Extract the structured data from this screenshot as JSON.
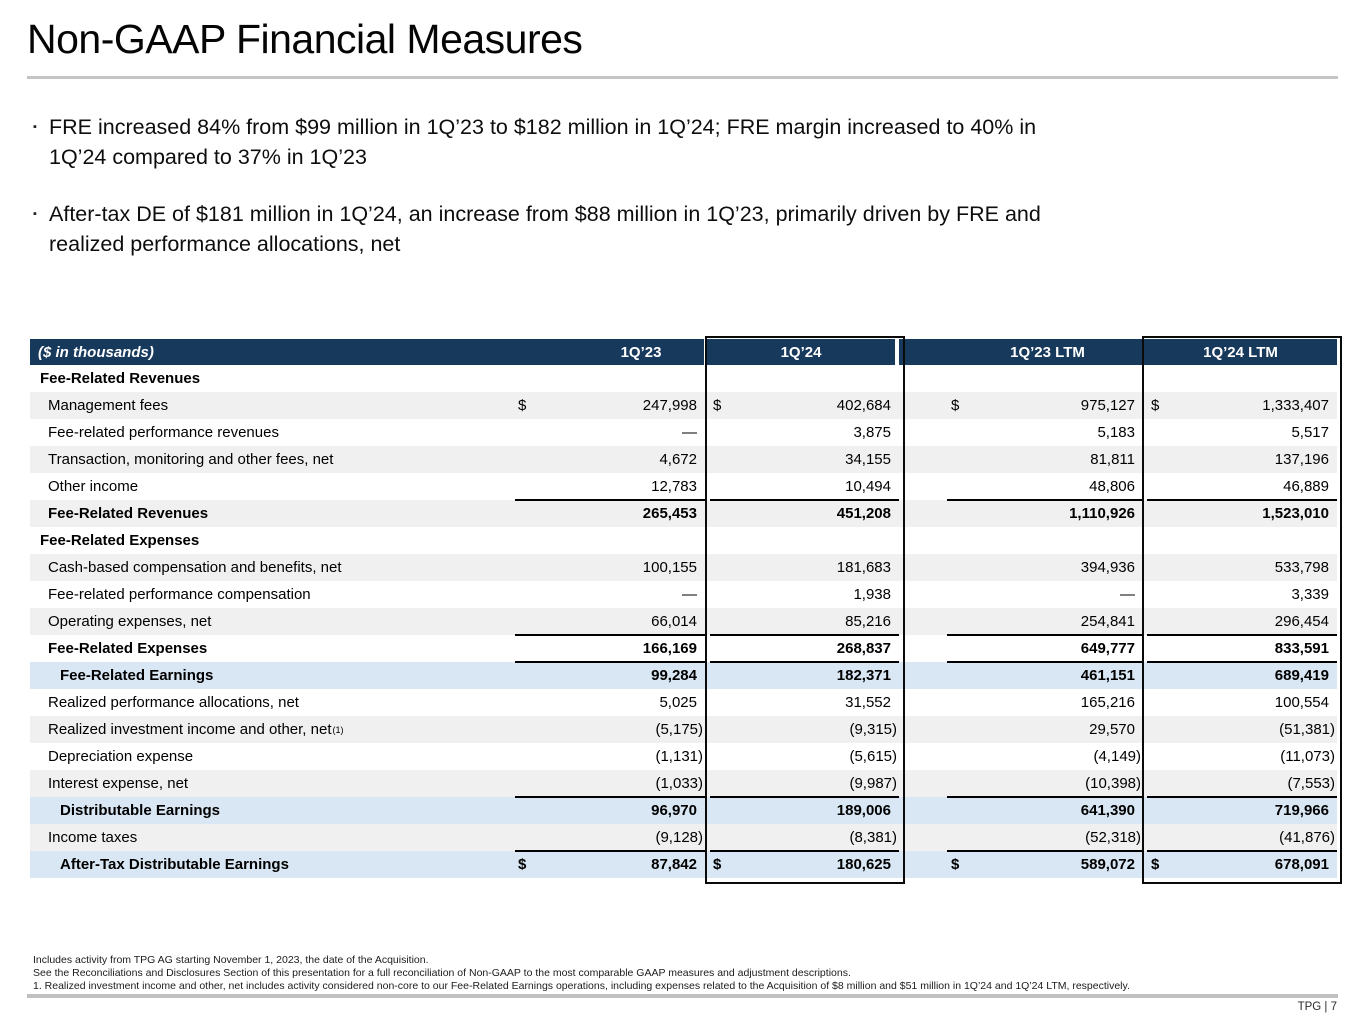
{
  "title": "Non-GAAP Financial Measures",
  "bullet_marker": "▪",
  "bullets": [
    [
      "FRE increased 84% from $99 million in 1Q’23 to $182 million in 1Q’24; FRE margin increased to 40% in",
      "1Q’24 compared to 37% in 1Q’23"
    ],
    [
      "After-tax DE of $181 million in 1Q’24, an increase from $88 million in 1Q’23, primarily driven by FRE and",
      "realized performance allocations, net"
    ]
  ],
  "colors": {
    "header_navy": "#17395c",
    "row_gray": "#f0f0f0",
    "highlight_blue": "#d9e7f4",
    "rule_gray": "#c5c5c5"
  },
  "table": {
    "currency_symbol": "$",
    "columns": [
      "($ in thousands)",
      "1Q’23",
      "1Q’24",
      "1Q’23 LTM",
      "1Q’24 LTM"
    ],
    "rows": [
      {
        "label": "Fee-Related Revenues",
        "type": "section",
        "bg": "white",
        "values": [
          "",
          "",
          "",
          ""
        ]
      },
      {
        "label": "Management fees",
        "type": "item",
        "bg": "gray",
        "dollar": true,
        "values": [
          "247,998",
          "402,684",
          "975,127",
          "1,333,407"
        ]
      },
      {
        "label": "Fee-related performance revenues",
        "type": "item",
        "bg": "white",
        "values": [
          "—",
          "3,875",
          "5,183",
          "5,517"
        ]
      },
      {
        "label": "Transaction, monitoring and other fees, net",
        "type": "item",
        "bg": "gray",
        "values": [
          "4,672",
          "34,155",
          "81,811",
          "137,196"
        ]
      },
      {
        "label": "Other income",
        "type": "item",
        "bg": "white",
        "values": [
          "12,783",
          "10,494",
          "48,806",
          "46,889"
        ]
      },
      {
        "label": "Fee-Related Revenues",
        "type": "total",
        "bg": "gray",
        "topline": true,
        "values": [
          "265,453",
          "451,208",
          "1,110,926",
          "1,523,010"
        ]
      },
      {
        "label": "Fee-Related Expenses",
        "type": "section",
        "bg": "white",
        "values": [
          "",
          "",
          "",
          ""
        ]
      },
      {
        "label": "Cash-based compensation and benefits, net",
        "type": "item",
        "bg": "gray",
        "values": [
          "100,155",
          "181,683",
          "394,936",
          "533,798"
        ]
      },
      {
        "label": "Fee-related performance compensation",
        "type": "item",
        "bg": "white",
        "values": [
          "—",
          "1,938",
          "—",
          "3,339"
        ]
      },
      {
        "label": "Operating expenses, net",
        "type": "item",
        "bg": "gray",
        "values": [
          "66,014",
          "85,216",
          "254,841",
          "296,454"
        ]
      },
      {
        "label": "Fee-Related Expenses",
        "type": "total",
        "bg": "white",
        "topline": true,
        "values": [
          "166,169",
          "268,837",
          "649,777",
          "833,591"
        ]
      },
      {
        "label": "Fee-Related Earnings",
        "type": "highlight",
        "bg": "blue",
        "topline": true,
        "values": [
          "99,284",
          "182,371",
          "461,151",
          "689,419"
        ]
      },
      {
        "label": "Realized performance allocations, net",
        "type": "item",
        "bg": "white",
        "values": [
          "5,025",
          "31,552",
          "165,216",
          "100,554"
        ]
      },
      {
        "label": "Realized investment income and other, net",
        "sup": "(1)",
        "type": "item",
        "bg": "gray",
        "values": [
          "(5,175)",
          "(9,315)",
          "29,570",
          "(51,381)"
        ]
      },
      {
        "label": "Depreciation expense",
        "type": "item",
        "bg": "white",
        "values": [
          "(1,131)",
          "(5,615)",
          "(4,149)",
          "(11,073)"
        ]
      },
      {
        "label": "Interest expense, net",
        "type": "item",
        "bg": "gray",
        "values": [
          "(1,033)",
          "(9,987)",
          "(10,398)",
          "(7,553)"
        ]
      },
      {
        "label": "Distributable Earnings",
        "type": "highlight",
        "bg": "blue",
        "topline": true,
        "values": [
          "96,970",
          "189,006",
          "641,390",
          "719,966"
        ]
      },
      {
        "label": "Income taxes",
        "type": "item",
        "bg": "gray",
        "values": [
          "(9,128)",
          "(8,381)",
          "(52,318)",
          "(41,876)"
        ]
      },
      {
        "label": "After-Tax Distributable Earnings",
        "type": "highlight",
        "bg": "blue",
        "topline": true,
        "dollar": true,
        "values": [
          "87,842",
          "180,625",
          "589,072",
          "678,091"
        ]
      }
    ]
  },
  "footnotes": [
    "Includes activity from TPG AG starting November 1, 2023, the date of the Acquisition.",
    "See the Reconciliations and Disclosures Section of this presentation for a full reconciliation of Non-GAAP to the most comparable GAAP measures and adjustment descriptions.",
    "1. Realized investment income and other, net includes activity considered non-core to our Fee-Related Earnings operations, including expenses related to the Acquisition of $8 million and $51 million in 1Q’24 and 1Q’24 LTM, respectively."
  ],
  "footer": {
    "label": "TPG | 7"
  }
}
